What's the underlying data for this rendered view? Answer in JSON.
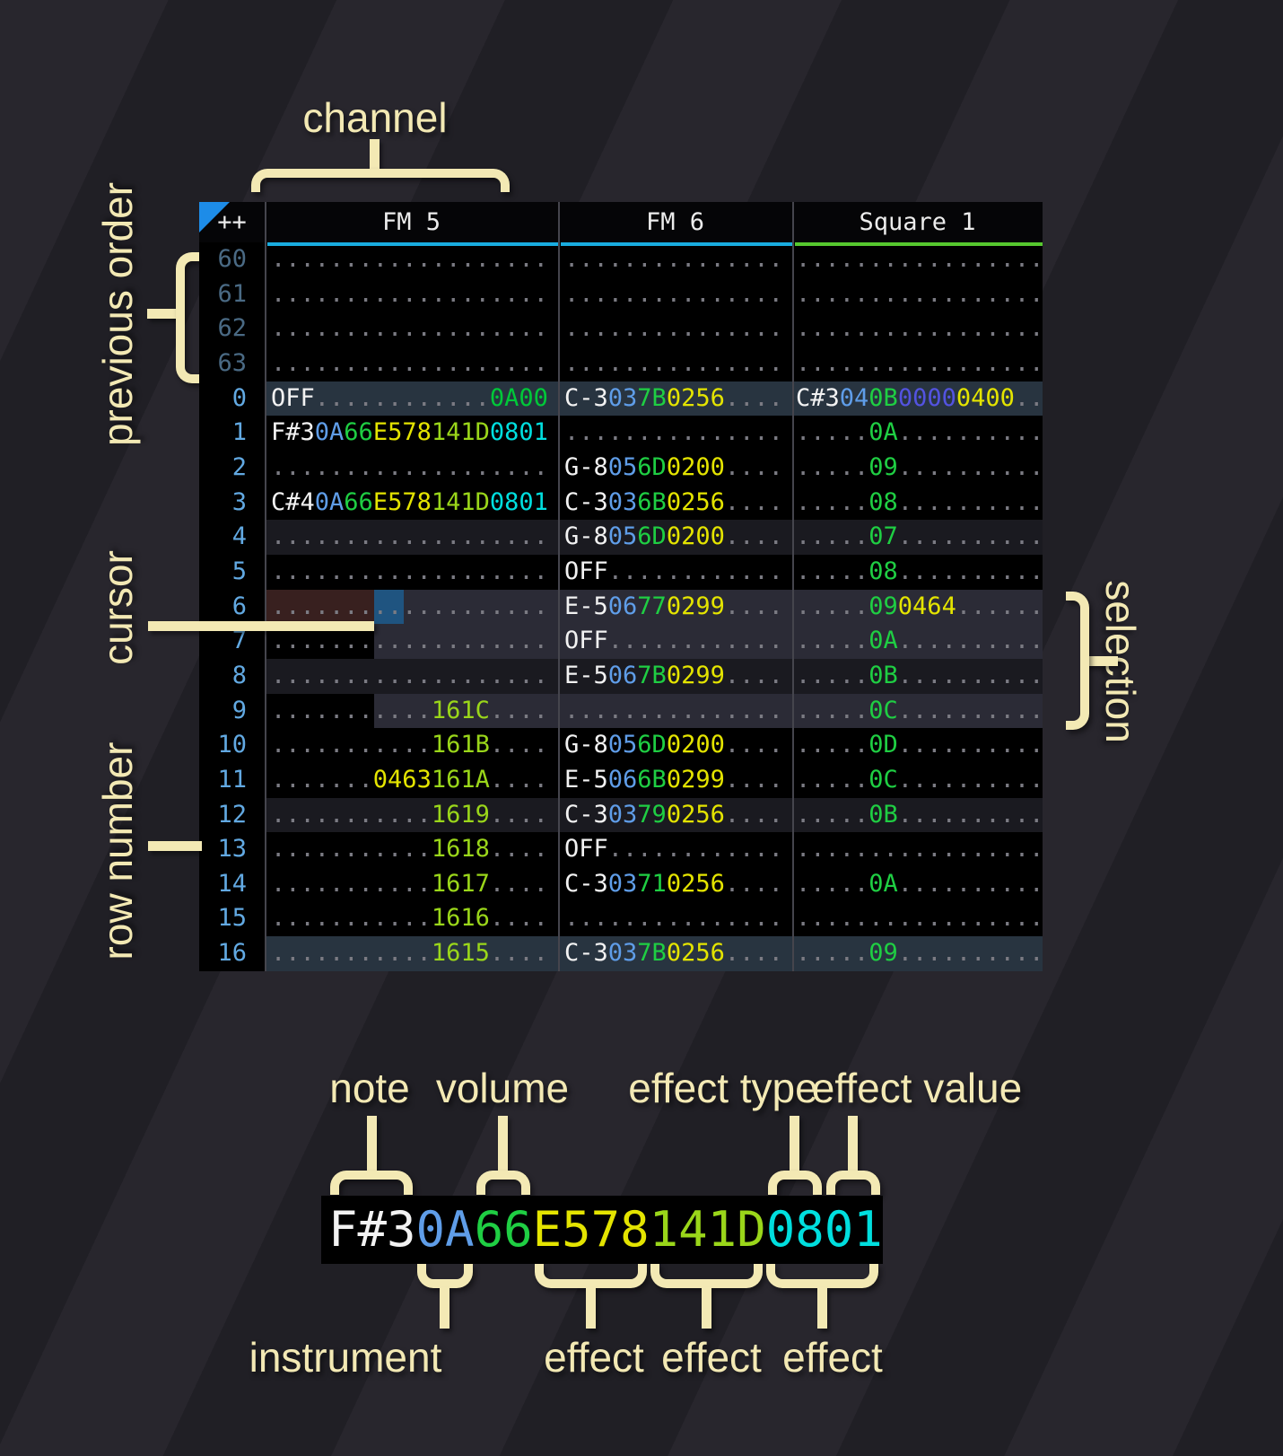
{
  "annotations": {
    "channel": "channel",
    "previous_order": "previous order",
    "cursor": "cursor",
    "row_number": "row number",
    "selection": "selection"
  },
  "legend": {
    "example": [
      [
        "F#3",
        "note"
      ],
      [
        "0A",
        "ins"
      ],
      [
        "66",
        "vol"
      ],
      [
        "E578",
        "e_yel"
      ],
      [
        "141D",
        "e_lim"
      ],
      [
        "0801",
        "e_cyn"
      ]
    ],
    "top_labels": [
      "note",
      "volume",
      "effect type",
      "effect value"
    ],
    "bottom_labels": [
      "instrument",
      "effect",
      "effect",
      "effect"
    ]
  },
  "pattern": {
    "corner": "++",
    "channels": [
      {
        "label": "FM 5",
        "underline": "#19acdf"
      },
      {
        "label": "FM 6",
        "underline": "#19acdf"
      },
      {
        "label": "Square 1",
        "underline": "#56c82e"
      }
    ],
    "rows": [
      {
        "num": "60",
        "dim": true,
        "bg": "",
        "fm5": [
          [
            "...................",
            "dot"
          ]
        ],
        "fm6": [
          [
            "...............",
            "dot"
          ]
        ],
        "sq1": [
          [
            ".................",
            "dot"
          ]
        ]
      },
      {
        "num": "61",
        "dim": true,
        "bg": "",
        "fm5": [
          [
            "...................",
            "dot"
          ]
        ],
        "fm6": [
          [
            "...............",
            "dot"
          ]
        ],
        "sq1": [
          [
            ".................",
            "dot"
          ]
        ]
      },
      {
        "num": "62",
        "dim": true,
        "bg": "",
        "fm5": [
          [
            "...................",
            "dot"
          ]
        ],
        "fm6": [
          [
            "...............",
            "dot"
          ]
        ],
        "sq1": [
          [
            ".................",
            "dot"
          ]
        ]
      },
      {
        "num": "63",
        "dim": true,
        "bg": "",
        "fm5": [
          [
            "...................",
            "dot"
          ]
        ],
        "fm6": [
          [
            "...............",
            "dot"
          ]
        ],
        "sq1": [
          [
            ".................",
            "dot"
          ]
        ]
      },
      {
        "num": "0",
        "dim": false,
        "bg": "hl2",
        "fm5": [
          [
            "OFF",
            "note"
          ],
          [
            "............",
            "dot"
          ],
          [
            "0A00",
            "e_grn"
          ]
        ],
        "fm6": [
          [
            "C-3",
            "note"
          ],
          [
            "03",
            "ins"
          ],
          [
            "7B",
            "vol"
          ],
          [
            "0256",
            "e_yel"
          ],
          [
            "....",
            "dot"
          ]
        ],
        "sq1": [
          [
            "C#3",
            "note"
          ],
          [
            "04",
            "ins"
          ],
          [
            "0B",
            "vol"
          ],
          [
            "0000",
            "e_ind"
          ],
          [
            "0400",
            "e_yel"
          ],
          [
            "..",
            "dot"
          ]
        ]
      },
      {
        "num": "1",
        "dim": false,
        "bg": "",
        "fm5": [
          [
            "F#3",
            "note"
          ],
          [
            "0A",
            "ins"
          ],
          [
            "66",
            "vol"
          ],
          [
            "E578",
            "e_yel"
          ],
          [
            "141D",
            "e_lim"
          ],
          [
            "0801",
            "e_cyn"
          ]
        ],
        "fm6": [
          [
            "...............",
            "dot"
          ]
        ],
        "sq1": [
          [
            ".....",
            "dot"
          ],
          [
            "0A",
            "vol"
          ],
          [
            "..........",
            "dot"
          ]
        ]
      },
      {
        "num": "2",
        "dim": false,
        "bg": "",
        "fm5": [
          [
            "...................",
            "dot"
          ]
        ],
        "fm6": [
          [
            "G-8",
            "note"
          ],
          [
            "05",
            "ins"
          ],
          [
            "6D",
            "vol"
          ],
          [
            "0200",
            "e_yel"
          ],
          [
            "....",
            "dot"
          ]
        ],
        "sq1": [
          [
            ".....",
            "dot"
          ],
          [
            "09",
            "vol"
          ],
          [
            "..........",
            "dot"
          ]
        ]
      },
      {
        "num": "3",
        "dim": false,
        "bg": "",
        "fm5": [
          [
            "C#4",
            "note"
          ],
          [
            "0A",
            "ins"
          ],
          [
            "66",
            "vol"
          ],
          [
            "E578",
            "e_yel"
          ],
          [
            "141D",
            "e_lim"
          ],
          [
            "0801",
            "e_cyn"
          ]
        ],
        "fm6": [
          [
            "C-3",
            "note"
          ],
          [
            "03",
            "ins"
          ],
          [
            "6B",
            "vol"
          ],
          [
            "0256",
            "e_yel"
          ],
          [
            "....",
            "dot"
          ]
        ],
        "sq1": [
          [
            ".....",
            "dot"
          ],
          [
            "08",
            "vol"
          ],
          [
            "..........",
            "dot"
          ]
        ]
      },
      {
        "num": "4",
        "dim": false,
        "bg": "hl1",
        "fm5": [
          [
            "...................",
            "dot"
          ]
        ],
        "fm6": [
          [
            "G-8",
            "note"
          ],
          [
            "05",
            "ins"
          ],
          [
            "6D",
            "vol"
          ],
          [
            "0200",
            "e_yel"
          ],
          [
            "....",
            "dot"
          ]
        ],
        "sq1": [
          [
            ".....",
            "dot"
          ],
          [
            "07",
            "vol"
          ],
          [
            "..........",
            "dot"
          ]
        ]
      },
      {
        "num": "5",
        "dim": false,
        "bg": "",
        "fm5": [
          [
            "...................",
            "dot"
          ]
        ],
        "fm6": [
          [
            "OFF",
            "note"
          ],
          [
            "............",
            "dot"
          ]
        ],
        "sq1": [
          [
            ".....",
            "dot"
          ],
          [
            "08",
            "vol"
          ],
          [
            "..........",
            "dot"
          ]
        ]
      },
      {
        "num": "6",
        "dim": false,
        "bg": "",
        "fm5": [
          [
            "...................",
            "dot"
          ]
        ],
        "fm6": [
          [
            "E-5",
            "note"
          ],
          [
            "06",
            "ins"
          ],
          [
            "77",
            "vol"
          ],
          [
            "0299",
            "e_yel"
          ],
          [
            "....",
            "dot"
          ]
        ],
        "sq1": [
          [
            ".....",
            "dot"
          ],
          [
            "09",
            "vol"
          ],
          [
            "0464",
            "e_yel"
          ],
          [
            "......",
            "dot"
          ]
        ]
      },
      {
        "num": "7",
        "dim": false,
        "bg": "",
        "fm5": [
          [
            "...................",
            "dot"
          ]
        ],
        "fm6": [
          [
            "OFF",
            "note"
          ],
          [
            "............",
            "dot"
          ]
        ],
        "sq1": [
          [
            ".....",
            "dot"
          ],
          [
            "0A",
            "vol"
          ],
          [
            "..........",
            "dot"
          ]
        ]
      },
      {
        "num": "8",
        "dim": false,
        "bg": "hl1",
        "fm5": [
          [
            "...................",
            "dot"
          ]
        ],
        "fm6": [
          [
            "E-5",
            "note"
          ],
          [
            "06",
            "ins"
          ],
          [
            "7B",
            "vol"
          ],
          [
            "0299",
            "e_yel"
          ],
          [
            "....",
            "dot"
          ]
        ],
        "sq1": [
          [
            ".....",
            "dot"
          ],
          [
            "0B",
            "vol"
          ],
          [
            "..........",
            "dot"
          ]
        ]
      },
      {
        "num": "9",
        "dim": false,
        "bg": "",
        "fm5": [
          [
            "...........",
            "dot"
          ],
          [
            "161C",
            "e_lim"
          ],
          [
            "....",
            "dot"
          ]
        ],
        "fm6": [
          [
            "...............",
            "dot"
          ]
        ],
        "sq1": [
          [
            ".....",
            "dot"
          ],
          [
            "0C",
            "vol"
          ],
          [
            "..........",
            "dot"
          ]
        ]
      },
      {
        "num": "10",
        "dim": false,
        "bg": "",
        "fm5": [
          [
            "...........",
            "dot"
          ],
          [
            "161B",
            "e_lim"
          ],
          [
            "....",
            "dot"
          ]
        ],
        "fm6": [
          [
            "G-8",
            "note"
          ],
          [
            "05",
            "ins"
          ],
          [
            "6D",
            "vol"
          ],
          [
            "0200",
            "e_yel"
          ],
          [
            "....",
            "dot"
          ]
        ],
        "sq1": [
          [
            ".....",
            "dot"
          ],
          [
            "0D",
            "vol"
          ],
          [
            "..........",
            "dot"
          ]
        ]
      },
      {
        "num": "11",
        "dim": false,
        "bg": "",
        "fm5": [
          [
            ".......",
            "dot"
          ],
          [
            "0463",
            "e_yel"
          ],
          [
            "161A",
            "e_lim"
          ],
          [
            "....",
            "dot"
          ]
        ],
        "fm6": [
          [
            "E-5",
            "note"
          ],
          [
            "06",
            "ins"
          ],
          [
            "6B",
            "vol"
          ],
          [
            "0299",
            "e_yel"
          ],
          [
            "....",
            "dot"
          ]
        ],
        "sq1": [
          [
            ".....",
            "dot"
          ],
          [
            "0C",
            "vol"
          ],
          [
            "..........",
            "dot"
          ]
        ]
      },
      {
        "num": "12",
        "dim": false,
        "bg": "hl1",
        "fm5": [
          [
            "...........",
            "dot"
          ],
          [
            "1619",
            "e_lim"
          ],
          [
            "....",
            "dot"
          ]
        ],
        "fm6": [
          [
            "C-3",
            "note"
          ],
          [
            "03",
            "ins"
          ],
          [
            "79",
            "vol"
          ],
          [
            "0256",
            "e_yel"
          ],
          [
            "....",
            "dot"
          ]
        ],
        "sq1": [
          [
            ".....",
            "dot"
          ],
          [
            "0B",
            "vol"
          ],
          [
            "..........",
            "dot"
          ]
        ]
      },
      {
        "num": "13",
        "dim": false,
        "bg": "",
        "fm5": [
          [
            "...........",
            "dot"
          ],
          [
            "1618",
            "e_lim"
          ],
          [
            "....",
            "dot"
          ]
        ],
        "fm6": [
          [
            "OFF",
            "note"
          ],
          [
            "............",
            "dot"
          ]
        ],
        "sq1": [
          [
            ".................",
            "dot"
          ]
        ]
      },
      {
        "num": "14",
        "dim": false,
        "bg": "",
        "fm5": [
          [
            "...........",
            "dot"
          ],
          [
            "1617",
            "e_lim"
          ],
          [
            "....",
            "dot"
          ]
        ],
        "fm6": [
          [
            "C-3",
            "note"
          ],
          [
            "03",
            "ins"
          ],
          [
            "71",
            "vol"
          ],
          [
            "0256",
            "e_yel"
          ],
          [
            "....",
            "dot"
          ]
        ],
        "sq1": [
          [
            ".....",
            "dot"
          ],
          [
            "0A",
            "vol"
          ],
          [
            "..........",
            "dot"
          ]
        ]
      },
      {
        "num": "15",
        "dim": false,
        "bg": "",
        "fm5": [
          [
            "...........",
            "dot"
          ],
          [
            "1616",
            "e_lim"
          ],
          [
            "....",
            "dot"
          ]
        ],
        "fm6": [
          [
            "...............",
            "dot"
          ]
        ],
        "sq1": [
          [
            ".................",
            "dot"
          ]
        ]
      },
      {
        "num": "16",
        "dim": false,
        "bg": "hl2",
        "fm5": [
          [
            "...........",
            "dot"
          ],
          [
            "1615",
            "e_lim"
          ],
          [
            "....",
            "dot"
          ]
        ],
        "fm6": [
          [
            "C-3",
            "note"
          ],
          [
            "03",
            "ins"
          ],
          [
            "7B",
            "vol"
          ],
          [
            "0256",
            "e_yel"
          ],
          [
            "....",
            "dot"
          ]
        ],
        "sq1": [
          [
            ".....",
            "dot"
          ],
          [
            "09",
            "vol"
          ],
          [
            "..........",
            "dot"
          ]
        ]
      }
    ]
  },
  "colors": {
    "note": "#f2f2f2",
    "ins": "#5f9de8",
    "vol": "#1fce43",
    "e_yel": "#e4e400",
    "e_lim": "#9ad61a",
    "e_cyn": "#00dede",
    "e_ind": "#5353e0",
    "e_grn": "#00c839",
    "dot": "#7b7b83",
    "rownum": "#62a9e2",
    "rownum_dim": "#4a6a84",
    "row_hl1": "#1a1a20",
    "row_hl2": "#283440",
    "selection": "#2b2b36",
    "cursor": "#1f5480",
    "cursor_row": "#38201f",
    "anno": "#f3e9b4",
    "triangle": "#1d8ce8"
  }
}
